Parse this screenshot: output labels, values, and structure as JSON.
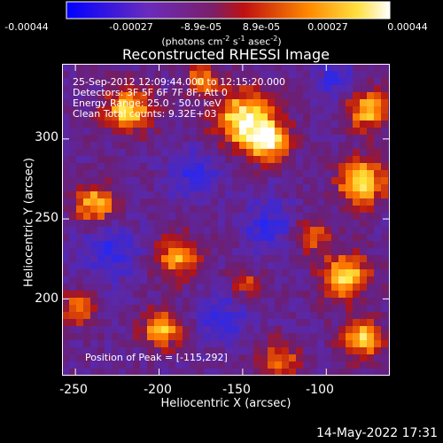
{
  "colorbar": {
    "ticks": [
      "-0.00044",
      "-0.00027",
      "-8.9e-05",
      "8.9e-05",
      "0.00027",
      "0.00044"
    ],
    "units_text": "(photons cm",
    "units_exp1": "-2",
    "units_mid1": " s",
    "units_exp2": "-1",
    "units_mid2": " asec",
    "units_exp3": "-2",
    "units_close": ")",
    "range": [
      -0.00044,
      0.00044
    ]
  },
  "chart_data": {
    "type": "heatmap",
    "title": "Reconstructed RHESSI Image",
    "xlabel": "Heliocentric X (arcsec)",
    "ylabel": "Heliocentric Y (arcsec)",
    "xlim": [
      -258,
      -62
    ],
    "ylim": [
      152,
      347
    ],
    "xticks": [
      -250,
      -200,
      -150,
      -100
    ],
    "yticks": [
      200,
      250,
      300
    ],
    "colormap": [
      "#0000ff",
      "#7a2ea8",
      "#c81e1e",
      "#ff8a00",
      "#ffff66",
      "#ffffff"
    ],
    "info_lines": [
      "25-Sep-2012 12:09:44.000 to 12:15:20.000",
      "Detectors: 3F 5F 6F 7F 8F, Att 0",
      "Energy Range: 25.0 - 50.0 keV",
      "Clean     Total counts: 9.32E+03"
    ],
    "peak_text": "Position of Peak = [-115,292]",
    "peak": [
      -115,
      292
    ]
  },
  "footer": {
    "date": "14-May-2022 17:31"
  }
}
